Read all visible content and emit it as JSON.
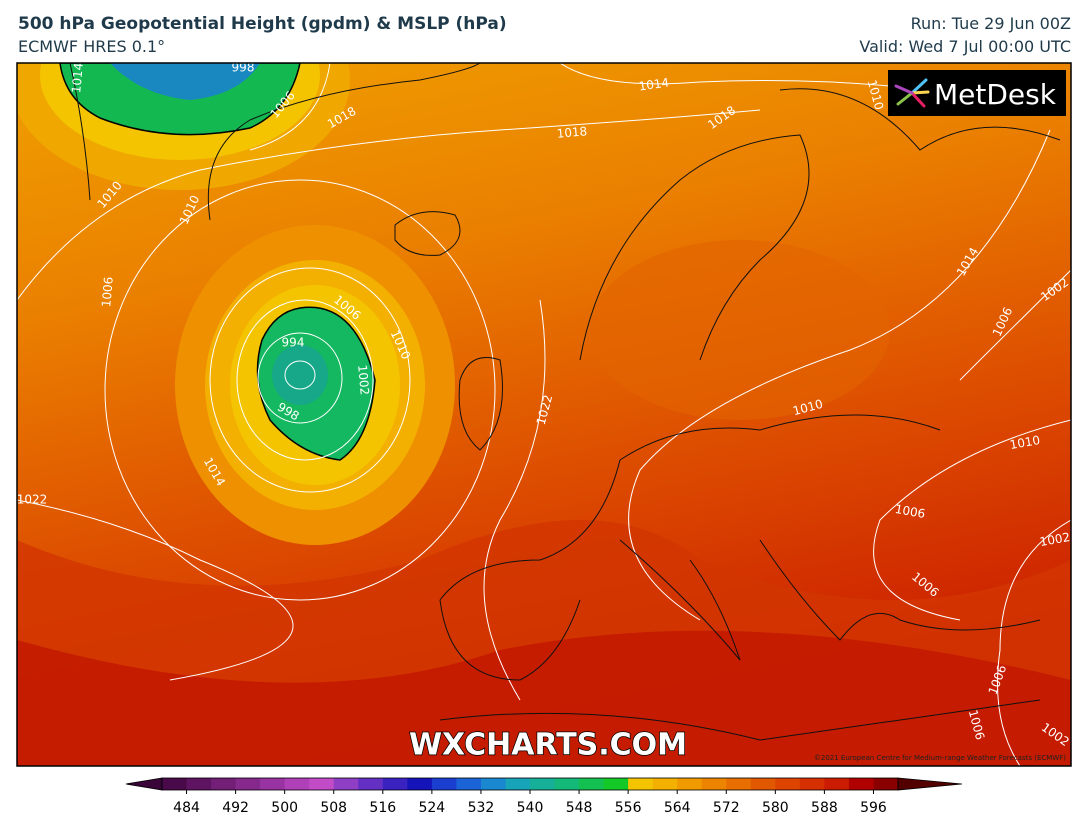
{
  "header": {
    "title": "500 hPa Geopotential Height (gpdm) & MSLP (hPa)",
    "subtitle": "ECMWF HRES 0.1°",
    "run": "Run: Tue 29 Jun 00Z",
    "valid": "Valid: Wed 7 Jul 00:00 UTC"
  },
  "map": {
    "logo": "MetDesk",
    "watermark": "WXCHARTS.COM",
    "copyright": "©2021 European Centre for Medium-range Weather Forecasts (ECMWF)",
    "contour_labels": [
      1014,
      998,
      1006,
      1018,
      1014,
      1018,
      1018,
      1010,
      1010,
      1006,
      1006,
      994,
      1010,
      1002,
      998,
      1022,
      1014,
      1022,
      1014,
      1002,
      1006,
      1010,
      1010,
      1006,
      1002,
      1006,
      1006,
      1006,
      1002,
      1010
    ]
  },
  "colorbar": {
    "clim": [
      480,
      600
    ],
    "ticks": [
      484,
      492,
      500,
      508,
      516,
      524,
      532,
      540,
      548,
      556,
      564,
      572,
      580,
      588,
      596
    ],
    "colors": [
      "#4a0a4a",
      "#5e1460",
      "#731f78",
      "#86298c",
      "#9a33a2",
      "#b040b8",
      "#c24cc8",
      "#8f3fc6",
      "#6430c4",
      "#3a22c0",
      "#1414b8",
      "#1a3ed0",
      "#1a64d8",
      "#1a88d0",
      "#18a4b8",
      "#16b098",
      "#14b878",
      "#14c050",
      "#14c828",
      "#f4c400",
      "#f4b000",
      "#f09a00",
      "#ec8400",
      "#e86e00",
      "#e25800",
      "#dc4400",
      "#d63000",
      "#cc1c00",
      "#b00000",
      "#8a0000"
    ],
    "arrow_low": "#3a063a",
    "arrow_high": "#520000"
  }
}
